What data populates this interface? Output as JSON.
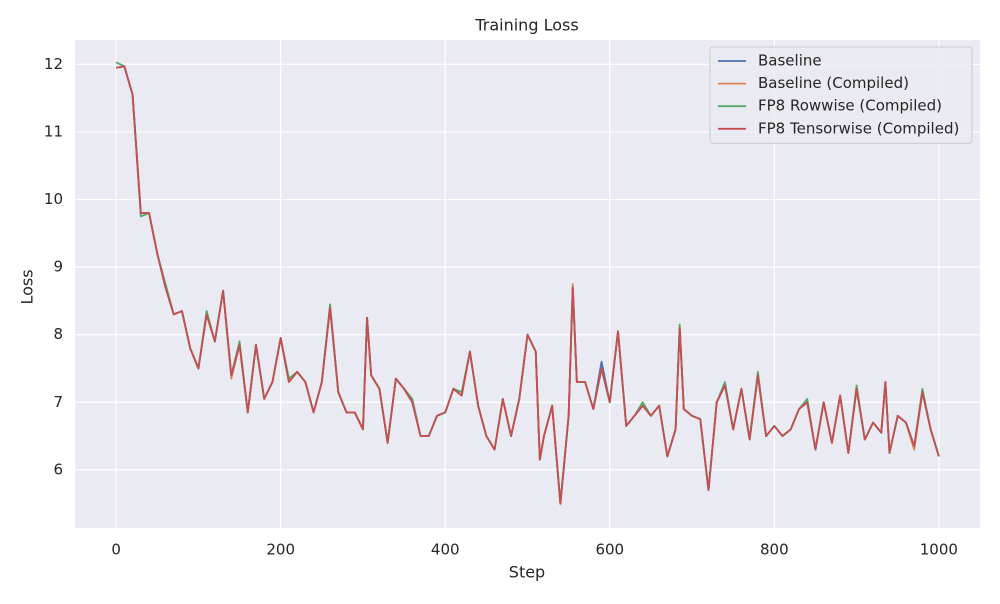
{
  "chart_data": {
    "type": "line",
    "title": "Training Loss",
    "x_label": "Step",
    "y_label": "Loss",
    "x": [
      0,
      10,
      20,
      30,
      40,
      50,
      60,
      70,
      80,
      90,
      100,
      110,
      120,
      130,
      140,
      150,
      160,
      170,
      180,
      190,
      200,
      210,
      220,
      230,
      240,
      250,
      260,
      270,
      280,
      290,
      300,
      305,
      310,
      320,
      330,
      340,
      350,
      360,
      370,
      380,
      390,
      400,
      410,
      420,
      430,
      440,
      450,
      460,
      470,
      480,
      490,
      500,
      510,
      515,
      520,
      530,
      540,
      550,
      555,
      560,
      570,
      580,
      590,
      600,
      610,
      620,
      630,
      640,
      650,
      660,
      670,
      680,
      685,
      690,
      700,
      710,
      720,
      730,
      740,
      750,
      760,
      770,
      780,
      790,
      800,
      810,
      820,
      830,
      840,
      850,
      860,
      870,
      880,
      890,
      900,
      910,
      920,
      930,
      935,
      940,
      950,
      960,
      970,
      980,
      990,
      1000
    ],
    "series": [
      {
        "name": "Baseline",
        "color": "#4c72b0",
        "values": [
          11.95,
          11.97,
          11.55,
          9.8,
          9.8,
          9.2,
          8.7,
          8.3,
          8.35,
          7.8,
          7.5,
          8.3,
          7.9,
          8.65,
          7.4,
          7.85,
          6.85,
          7.85,
          7.05,
          7.3,
          7.95,
          7.3,
          7.45,
          7.3,
          6.85,
          7.3,
          8.4,
          7.15,
          6.85,
          6.85,
          6.6,
          8.25,
          7.4,
          7.2,
          6.4,
          7.35,
          7.2,
          7.0,
          6.5,
          6.5,
          6.8,
          6.85,
          7.2,
          7.1,
          7.75,
          6.95,
          6.5,
          6.3,
          7.05,
          6.5,
          7.05,
          8.0,
          7.75,
          6.15,
          6.5,
          6.95,
          5.5,
          6.8,
          8.7,
          7.3,
          7.3,
          6.9,
          7.6,
          7.0,
          8.05,
          6.65,
          6.8,
          6.95,
          6.8,
          6.95,
          6.2,
          6.6,
          8.1,
          6.9,
          6.8,
          6.75,
          5.7,
          7.0,
          7.25,
          6.6,
          7.2,
          6.45,
          7.4,
          6.5,
          6.65,
          6.5,
          6.6,
          6.9,
          7.0,
          6.3,
          7.0,
          6.4,
          7.1,
          6.25,
          7.2,
          6.45,
          6.7,
          6.55,
          7.3,
          6.25,
          6.8,
          6.7,
          6.35,
          7.15,
          6.6,
          6.2
        ]
      },
      {
        "name": "Baseline (Compiled)",
        "color": "#dd8452",
        "values": [
          11.95,
          11.97,
          11.55,
          9.8,
          9.8,
          9.2,
          8.7,
          8.3,
          8.35,
          7.8,
          7.5,
          8.3,
          7.9,
          8.65,
          7.35,
          7.85,
          6.85,
          7.85,
          7.05,
          7.3,
          7.95,
          7.3,
          7.45,
          7.3,
          6.85,
          7.3,
          8.4,
          7.15,
          6.85,
          6.85,
          6.6,
          8.25,
          7.4,
          7.2,
          6.4,
          7.35,
          7.2,
          7.0,
          6.5,
          6.5,
          6.8,
          6.85,
          7.2,
          7.1,
          7.75,
          6.95,
          6.5,
          6.3,
          7.05,
          6.5,
          7.05,
          8.0,
          7.75,
          6.15,
          6.5,
          6.95,
          5.5,
          6.8,
          8.75,
          7.3,
          7.3,
          6.9,
          7.5,
          7.0,
          8.05,
          6.65,
          6.8,
          6.95,
          6.8,
          6.95,
          6.2,
          6.6,
          8.1,
          6.9,
          6.8,
          6.75,
          5.7,
          7.0,
          7.25,
          6.6,
          7.2,
          6.45,
          7.4,
          6.5,
          6.65,
          6.5,
          6.6,
          6.9,
          7.0,
          6.3,
          7.0,
          6.4,
          7.1,
          6.25,
          7.2,
          6.45,
          6.7,
          6.55,
          7.3,
          6.25,
          6.8,
          6.7,
          6.3,
          7.15,
          6.6,
          6.2
        ]
      },
      {
        "name": "FP8 Rowwise (Compiled)",
        "color": "#55a868",
        "values": [
          12.03,
          11.97,
          11.55,
          9.75,
          9.8,
          9.2,
          8.75,
          8.3,
          8.35,
          7.8,
          7.5,
          8.35,
          7.9,
          8.65,
          7.4,
          7.9,
          6.85,
          7.85,
          7.05,
          7.3,
          7.95,
          7.35,
          7.45,
          7.3,
          6.85,
          7.3,
          8.45,
          7.15,
          6.85,
          6.85,
          6.6,
          8.25,
          7.4,
          7.2,
          6.4,
          7.35,
          7.2,
          7.05,
          6.5,
          6.5,
          6.8,
          6.85,
          7.2,
          7.15,
          7.75,
          6.95,
          6.5,
          6.3,
          7.05,
          6.5,
          7.05,
          8.0,
          7.75,
          6.15,
          6.5,
          6.95,
          5.5,
          6.8,
          8.7,
          7.3,
          7.3,
          6.9,
          7.5,
          7.0,
          8.05,
          6.65,
          6.8,
          7.0,
          6.8,
          6.95,
          6.2,
          6.6,
          8.15,
          6.9,
          6.8,
          6.75,
          5.7,
          7.0,
          7.3,
          6.6,
          7.2,
          6.45,
          7.45,
          6.5,
          6.65,
          6.5,
          6.6,
          6.9,
          7.05,
          6.3,
          7.0,
          6.4,
          7.1,
          6.25,
          7.25,
          6.45,
          6.7,
          6.55,
          7.3,
          6.25,
          6.8,
          6.7,
          6.35,
          7.2,
          6.6,
          6.2
        ]
      },
      {
        "name": "FP8 Tensorwise (Compiled)",
        "color": "#c44e52",
        "values": [
          11.95,
          11.97,
          11.55,
          9.8,
          9.8,
          9.2,
          8.7,
          8.3,
          8.35,
          7.8,
          7.5,
          8.3,
          7.9,
          8.65,
          7.4,
          7.85,
          6.85,
          7.85,
          7.05,
          7.3,
          7.95,
          7.3,
          7.45,
          7.3,
          6.85,
          7.3,
          8.4,
          7.15,
          6.85,
          6.85,
          6.6,
          8.25,
          7.4,
          7.2,
          6.4,
          7.35,
          7.2,
          7.0,
          6.5,
          6.5,
          6.8,
          6.85,
          7.2,
          7.1,
          7.75,
          6.95,
          6.5,
          6.3,
          7.05,
          6.5,
          7.05,
          8.0,
          7.75,
          6.15,
          6.5,
          6.95,
          5.5,
          6.8,
          8.7,
          7.3,
          7.3,
          6.9,
          7.5,
          7.0,
          8.05,
          6.65,
          6.8,
          6.95,
          6.8,
          6.95,
          6.2,
          6.6,
          8.1,
          6.9,
          6.8,
          6.75,
          5.7,
          7.0,
          7.25,
          6.6,
          7.2,
          6.45,
          7.4,
          6.5,
          6.65,
          6.5,
          6.6,
          6.9,
          7.0,
          6.3,
          7.0,
          6.4,
          7.1,
          6.25,
          7.2,
          6.45,
          6.7,
          6.55,
          7.3,
          6.25,
          6.8,
          6.7,
          6.35,
          7.15,
          6.6,
          6.2
        ]
      }
    ],
    "xlim": [
      -50,
      1050
    ],
    "ylim": [
      5.14,
      12.36
    ],
    "xticks": [
      0,
      200,
      400,
      600,
      800,
      1000
    ],
    "yticks": [
      6,
      7,
      8,
      9,
      10,
      11,
      12
    ],
    "grid": true,
    "legend": "upper right"
  }
}
